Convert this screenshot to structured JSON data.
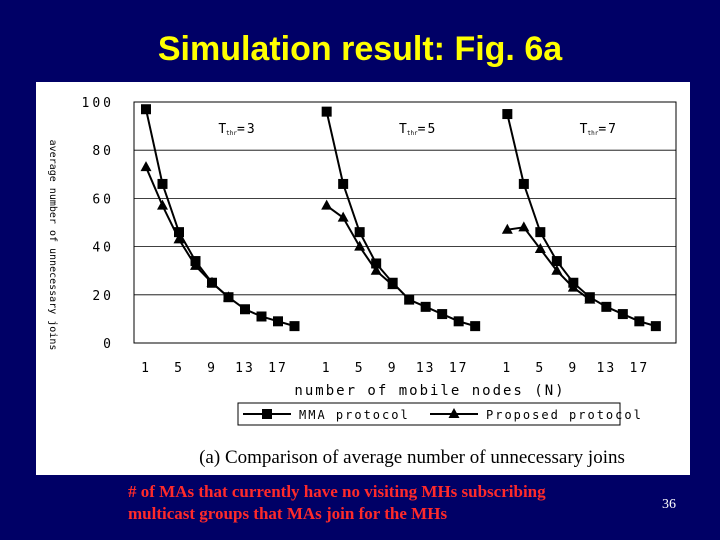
{
  "slide": {
    "title": "Simulation result: Fig. 6a",
    "note_line1": "# of MAs that currently have no visiting MHs subscribing",
    "note_line2": "multicast groups that MAs join for the MHs",
    "page_number": "36"
  },
  "colors": {
    "background": "#000066",
    "title": "#ffff00",
    "note": "#ff2a2a",
    "plot": "#000000"
  },
  "chart_data": {
    "type": "line",
    "caption": "(a) Comparison of average number of unnecessary joins",
    "xlabel": "number of mobile nodes (N)",
    "ylabel": "average number of unnecessary joins",
    "ylim": [
      0,
      100
    ],
    "yticks": [
      "100",
      "80",
      "60",
      "40",
      "20",
      "0"
    ],
    "grid": true,
    "legend_position": "bottom-center",
    "legend": [
      "MMA protocol",
      "Proposed protocol"
    ],
    "panels": [
      {
        "label_text": "T",
        "label_sub": "thr",
        "label_value": "=3",
        "x": [
          1,
          3,
          5,
          7,
          9,
          11,
          13,
          15,
          17,
          19
        ],
        "xtick_labels": [
          "1",
          "5",
          "9",
          "13",
          "17"
        ],
        "xtick_values": [
          1,
          5,
          9,
          13,
          17
        ],
        "series": [
          {
            "name": "MMA protocol",
            "marker": "square",
            "values": [
              97,
              66,
              46,
              34,
              25,
              19,
              14,
              11,
              9,
              7
            ]
          },
          {
            "name": "Proposed protocol",
            "marker": "triangle",
            "values": [
              73,
              57,
              43,
              32,
              25,
              19,
              null,
              null,
              null,
              null
            ]
          }
        ]
      },
      {
        "label_text": "T",
        "label_sub": "thr",
        "label_value": "=5",
        "x": [
          1,
          3,
          5,
          7,
          9,
          11,
          13,
          15,
          17,
          19
        ],
        "xtick_labels": [
          "1",
          "5",
          "9",
          "13",
          "17"
        ],
        "xtick_values": [
          1,
          5,
          9,
          13,
          17
        ],
        "series": [
          {
            "name": "MMA protocol",
            "marker": "square",
            "values": [
              96,
              66,
              46,
              33,
              25,
              18,
              15,
              12,
              9,
              7
            ]
          },
          {
            "name": "Proposed protocol",
            "marker": "triangle",
            "values": [
              57,
              52,
              40,
              30,
              24,
              null,
              null,
              null,
              null,
              null
            ]
          }
        ]
      },
      {
        "label_text": "T",
        "label_sub": "thr",
        "label_value": "=7",
        "x": [
          1,
          3,
          5,
          7,
          9,
          11,
          13,
          15,
          17,
          19
        ],
        "xtick_labels": [
          "1",
          "5",
          "9",
          "13",
          "17"
        ],
        "xtick_values": [
          1,
          5,
          9,
          13,
          17
        ],
        "series": [
          {
            "name": "MMA protocol",
            "marker": "square",
            "values": [
              95,
              66,
              46,
              34,
              25,
              19,
              15,
              12,
              9,
              7
            ]
          },
          {
            "name": "Proposed protocol",
            "marker": "triangle",
            "values": [
              47,
              48,
              39,
              30,
              23,
              18,
              null,
              null,
              null,
              null
            ]
          }
        ]
      }
    ]
  }
}
